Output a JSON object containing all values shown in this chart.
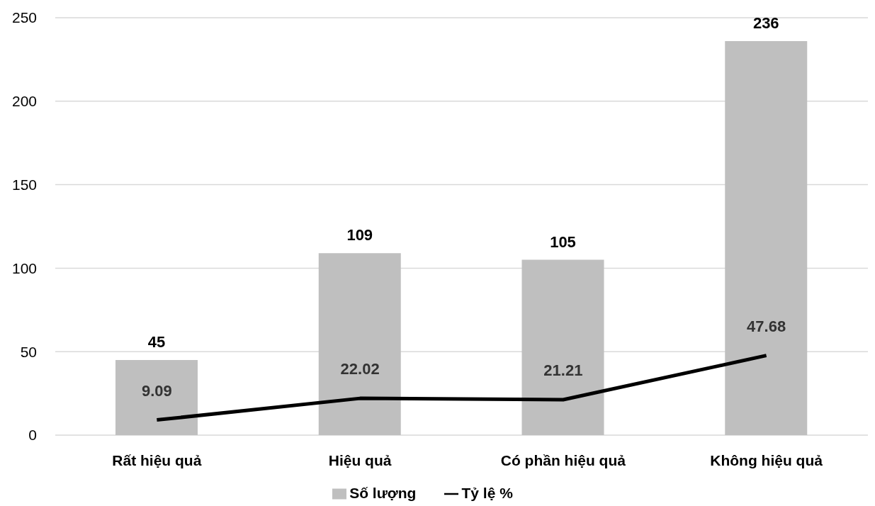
{
  "chart_data": {
    "type": "bar",
    "categories": [
      "Rất hiệu quả",
      "Hiệu quả",
      "Có phần hiệu quả",
      "Không hiệu quả"
    ],
    "series": [
      {
        "name": "Số lượng",
        "color": "#bfbfbf",
        "values": [
          45,
          109,
          105,
          236
        ]
      },
      {
        "name": "Tỷ lệ %",
        "type": "line",
        "color": "#000000",
        "values": [
          9.09,
          22.02,
          21.21,
          47.68
        ]
      }
    ],
    "ylim": [
      0,
      250
    ],
    "yticks": [
      0,
      50,
      100,
      150,
      200,
      250
    ],
    "grid": "y",
    "legend": "bottom",
    "data_labels": true,
    "marker": "none",
    "line_style": "solid"
  }
}
